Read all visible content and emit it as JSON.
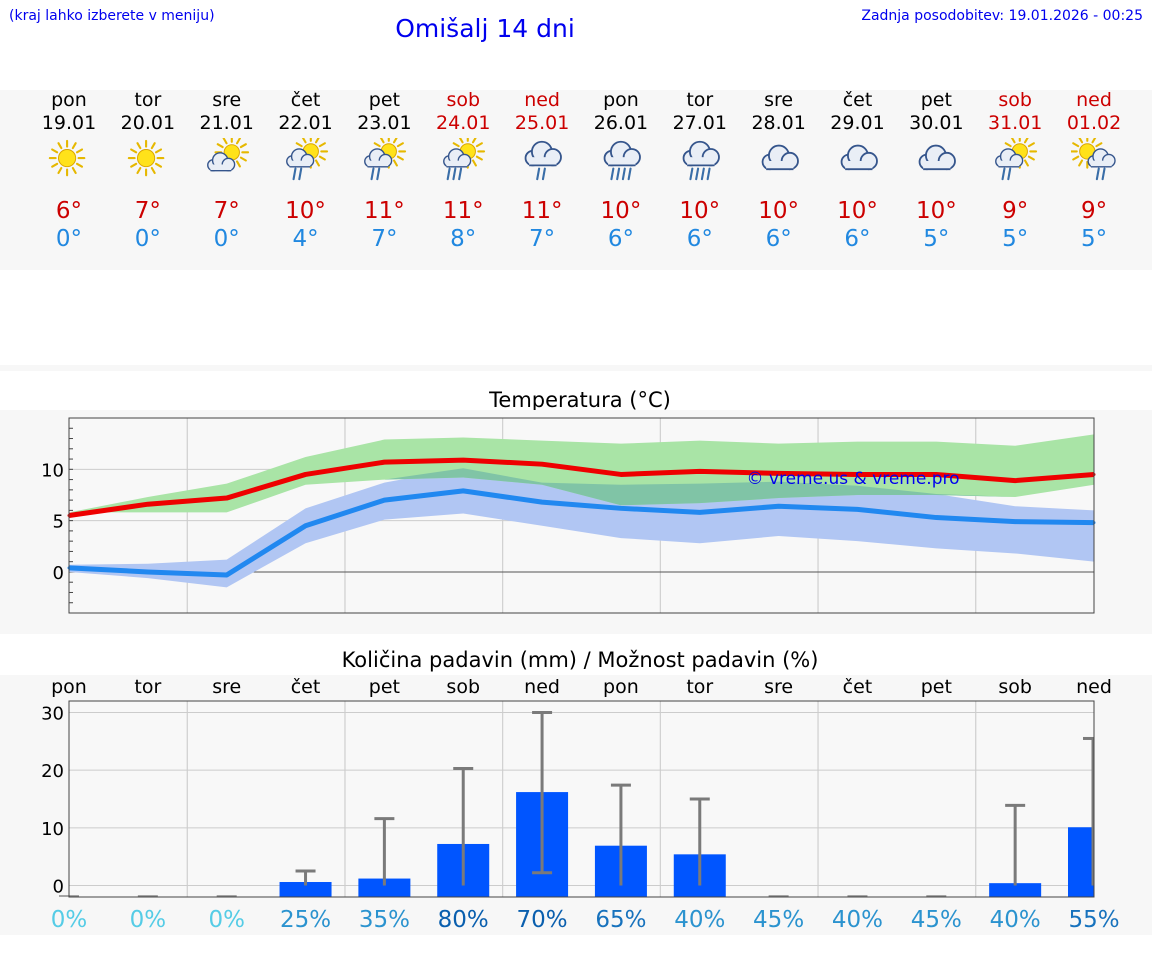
{
  "header": {
    "location_hint": "(kraj lahko izberete v meniju)",
    "title": "Omišalj 14 dni",
    "updated": "Zadnja posodobitev: 19.01.2026 - 00:25"
  },
  "days": [
    {
      "name": "pon",
      "date": "19.01",
      "weekend": false,
      "icon": "sun-icon",
      "tmax": "6°",
      "tmin": "0°"
    },
    {
      "name": "tor",
      "date": "20.01",
      "weekend": false,
      "icon": "sun-icon",
      "tmax": "7°",
      "tmin": "0°"
    },
    {
      "name": "sre",
      "date": "21.01",
      "weekend": false,
      "icon": "partly-cloudy-icon",
      "tmax": "7°",
      "tmin": "0°"
    },
    {
      "name": "čet",
      "date": "22.01",
      "weekend": false,
      "icon": "partly-cloudy-rain-icon",
      "tmax": "10°",
      "tmin": "4°"
    },
    {
      "name": "pet",
      "date": "23.01",
      "weekend": false,
      "icon": "partly-cloudy-rain-icon",
      "tmax": "11°",
      "tmin": "7°"
    },
    {
      "name": "sob",
      "date": "24.01",
      "weekend": true,
      "icon": "partly-cloudy-heavy-rain-icon",
      "tmax": "11°",
      "tmin": "8°"
    },
    {
      "name": "ned",
      "date": "25.01",
      "weekend": true,
      "icon": "cloud-rain-icon",
      "tmax": "11°",
      "tmin": "7°"
    },
    {
      "name": "pon",
      "date": "26.01",
      "weekend": false,
      "icon": "cloud-heavy-rain-icon",
      "tmax": "10°",
      "tmin": "6°"
    },
    {
      "name": "tor",
      "date": "27.01",
      "weekend": false,
      "icon": "cloud-heavy-rain-icon",
      "tmax": "10°",
      "tmin": "6°"
    },
    {
      "name": "sre",
      "date": "28.01",
      "weekend": false,
      "icon": "cloud-icon",
      "tmax": "10°",
      "tmin": "6°"
    },
    {
      "name": "čet",
      "date": "29.01",
      "weekend": false,
      "icon": "cloud-icon",
      "tmax": "10°",
      "tmin": "6°"
    },
    {
      "name": "pet",
      "date": "30.01",
      "weekend": false,
      "icon": "cloud-icon",
      "tmax": "10°",
      "tmin": "5°"
    },
    {
      "name": "sob",
      "date": "31.01",
      "weekend": true,
      "icon": "partly-cloudy-rain-icon",
      "tmax": "9°",
      "tmin": "5°"
    },
    {
      "name": "ned",
      "date": "01.02",
      "weekend": true,
      "icon": "sun-cloud-rain-icon",
      "tmax": "9°",
      "tmin": "5°"
    }
  ],
  "colors": {
    "accent_blue": "#0000ee",
    "weekend_red": "#cc0000",
    "max_line": "#ee0000",
    "min_line": "#2188f0",
    "max_band": "#a9e4a6",
    "min_band": "#b1c6f3",
    "overlap_band": "#80c4a6",
    "precip_bar": "#0055ff"
  },
  "chart_data": [
    {
      "type": "line",
      "title": "Temperatura (°C)",
      "watermark": "© vreme.us & vreme.pro",
      "x": [
        0,
        1,
        2,
        3,
        4,
        5,
        6,
        7,
        8,
        9,
        10,
        11,
        12,
        13
      ],
      "ylim": [
        -4,
        15
      ],
      "yticks": [
        0,
        5,
        10
      ],
      "grid": true,
      "series": [
        {
          "name": "max",
          "values": [
            5.5,
            6.6,
            7.2,
            9.5,
            10.7,
            10.9,
            10.5,
            9.5,
            9.8,
            9.6,
            9.5,
            9.5,
            8.9,
            9.5
          ]
        },
        {
          "name": "min",
          "values": [
            0.4,
            0.0,
            -0.3,
            4.5,
            7.0,
            7.9,
            6.8,
            6.2,
            5.8,
            6.4,
            6.1,
            5.3,
            4.9,
            4.8
          ]
        },
        {
          "name": "max_range",
          "lower": [
            5.8,
            5.8,
            5.8,
            8.5,
            9.0,
            9.2,
            8.5,
            6.5,
            6.7,
            7.2,
            7.5,
            7.5,
            7.3,
            8.5
          ],
          "upper": [
            5.8,
            7.3,
            8.6,
            11.2,
            12.9,
            13.1,
            12.8,
            12.5,
            12.8,
            12.5,
            12.7,
            12.7,
            12.3,
            13.4
          ]
        },
        {
          "name": "min_range",
          "lower": [
            0.0,
            -0.6,
            -1.5,
            2.8,
            5.1,
            5.7,
            4.5,
            3.3,
            2.8,
            3.5,
            3.0,
            2.3,
            1.8,
            1.0
          ],
          "upper": [
            0.7,
            0.8,
            1.2,
            6.2,
            8.7,
            10.1,
            8.7,
            8.5,
            8.6,
            8.8,
            8.4,
            7.6,
            6.4,
            6.0
          ]
        }
      ]
    },
    {
      "type": "bar",
      "title": "Količina padavin (mm) / Možnost padavin (%)",
      "categories": [
        "pon",
        "tor",
        "sre",
        "čet",
        "pet",
        "sob",
        "ned",
        "pon",
        "tor",
        "sre",
        "čet",
        "pet",
        "sob",
        "ned"
      ],
      "ylim": [
        -2,
        32
      ],
      "yticks": [
        0,
        10,
        20,
        30
      ],
      "series": [
        {
          "name": "amount_mm",
          "values": [
            0,
            0,
            0,
            0.6,
            1.2,
            7.2,
            16.2,
            6.9,
            5.4,
            0,
            0,
            0,
            0.4,
            10.1
          ]
        },
        {
          "name": "err_low",
          "values": [
            0,
            0,
            0,
            0,
            0,
            0,
            2.2,
            0,
            0,
            0,
            0,
            0,
            0,
            0
          ]
        },
        {
          "name": "err_high",
          "values": [
            0,
            0,
            0,
            2.5,
            11.6,
            20.3,
            30.0,
            17.4,
            15.0,
            0,
            0,
            0,
            13.9,
            25.5
          ]
        }
      ],
      "probabilities": [
        "0%",
        "0%",
        "0%",
        "25%",
        "35%",
        "80%",
        "70%",
        "65%",
        "40%",
        "45%",
        "40%",
        "45%",
        "40%",
        "55%"
      ],
      "probability_colors": [
        "#55cce6",
        "#55cce6",
        "#55cce6",
        "#2b93cf",
        "#2b93cf",
        "#0a5fae",
        "#0a5fae",
        "#1772bd",
        "#2b93cf",
        "#2b93cf",
        "#2b93cf",
        "#2b93cf",
        "#2b93cf",
        "#1772bd"
      ]
    }
  ]
}
